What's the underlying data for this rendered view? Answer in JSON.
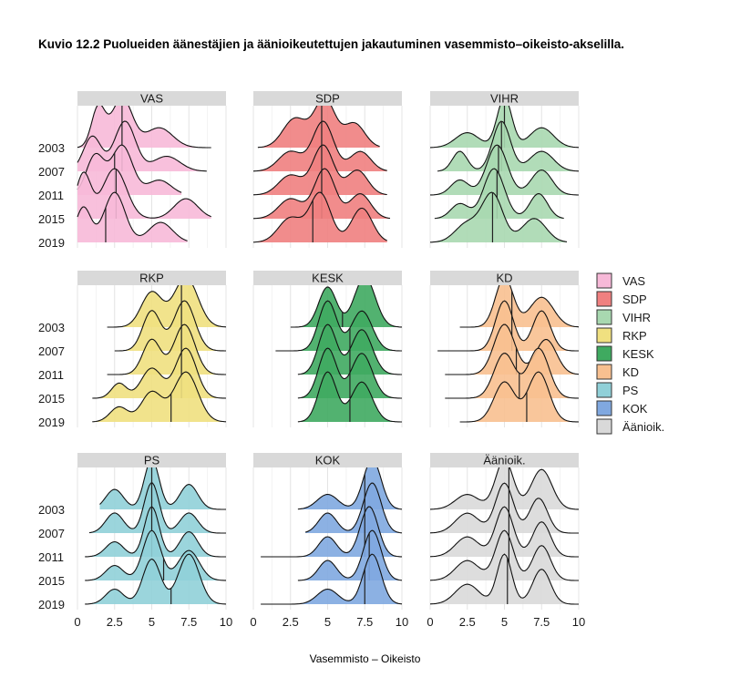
{
  "figure": {
    "label": "Kuvio 12.2",
    "title": "Puolueiden äänestäjien ja äänioikeutettujen jakautuminen vasemmisto–oikeisto-akselilla."
  },
  "chart_data": {
    "type": "ridgeline",
    "xlabel": "Vasemmisto – Oikeisto",
    "xlim": [
      0,
      10
    ],
    "xticks": [
      "0",
      "2.5",
      "5",
      "7.5",
      "10"
    ],
    "years": [
      "2003",
      "2007",
      "2011",
      "2015",
      "2019"
    ],
    "legend": {
      "placement": "right",
      "entries": [
        "VAS",
        "SDP",
        "VIHR",
        "RKP",
        "KESK",
        "KD",
        "PS",
        "KOK",
        "Äänioik."
      ]
    },
    "grid": true,
    "panels": [
      {
        "name": "VAS",
        "color": "#f7b9d8",
        "medians": [
          3.0,
          3.0,
          2.5,
          2.6,
          1.9
        ],
        "ridges": [
          {
            "range": [
              0,
              9.0
            ],
            "peaks": [
              [
                1.4,
                0.45,
                0.8
              ],
              [
                3.0,
                0.7,
                1.0
              ],
              [
                5.5,
                0.9,
                0.4
              ]
            ]
          },
          {
            "range": [
              0,
              8.7
            ],
            "peaks": [
              [
                1.0,
                0.6,
                0.7
              ],
              [
                3.2,
                0.7,
                1.0
              ],
              [
                6.0,
                0.9,
                0.3
              ]
            ]
          },
          {
            "range": [
              0,
              7.0
            ],
            "peaks": [
              [
                1.2,
                0.6,
                0.8
              ],
              [
                3.0,
                0.7,
                1.0
              ],
              [
                5.5,
                0.8,
                0.3
              ]
            ]
          },
          {
            "range": [
              0,
              9.0
            ],
            "peaks": [
              [
                0.4,
                0.5,
                0.9
              ],
              [
                2.5,
                0.8,
                1.0
              ],
              [
                7.3,
                0.8,
                0.4
              ]
            ]
          },
          {
            "range": [
              0,
              7.4
            ],
            "peaks": [
              [
                0.4,
                0.5,
                0.7
              ],
              [
                2.5,
                0.7,
                1.0
              ],
              [
                5.6,
                0.8,
                0.4
              ]
            ]
          }
        ]
      },
      {
        "name": "SDP",
        "color": "#f08080",
        "medians": [
          4.6,
          4.6,
          4.6,
          4.6,
          4.0
        ],
        "ridges": [
          {
            "range": [
              0.3,
              8.5
            ],
            "peaks": [
              [
                2.8,
                0.8,
                0.6
              ],
              [
                4.8,
                0.7,
                1.0
              ],
              [
                6.8,
                0.7,
                0.5
              ]
            ]
          },
          {
            "range": [
              0,
              9.0
            ],
            "peaks": [
              [
                2.5,
                0.8,
                0.4
              ],
              [
                4.7,
                0.7,
                1.0
              ],
              [
                7.2,
                0.7,
                0.4
              ]
            ]
          },
          {
            "range": [
              0,
              9.0
            ],
            "peaks": [
              [
                2.5,
                0.8,
                0.4
              ],
              [
                4.7,
                0.7,
                1.0
              ],
              [
                7.0,
                0.7,
                0.5
              ]
            ]
          },
          {
            "range": [
              0,
              9.2
            ],
            "peaks": [
              [
                2.5,
                0.8,
                0.4
              ],
              [
                4.8,
                0.7,
                1.0
              ],
              [
                7.2,
                0.7,
                0.5
              ]
            ]
          },
          {
            "range": [
              0,
              9.0
            ],
            "peaks": [
              [
                2.5,
                0.8,
                0.5
              ],
              [
                4.5,
                0.7,
                1.0
              ],
              [
                7.3,
                0.7,
                0.7
              ]
            ]
          }
        ]
      },
      {
        "name": "VIHR",
        "color": "#a8d8b0",
        "medians": [
          5.0,
          4.8,
          4.6,
          4.5,
          4.2
        ],
        "ridges": [
          {
            "range": [
              0,
              10
            ],
            "peaks": [
              [
                2.5,
                0.8,
                0.3
              ],
              [
                5.0,
                0.5,
                1.0
              ],
              [
                7.5,
                0.8,
                0.4
              ]
            ]
          },
          {
            "range": [
              0.5,
              10
            ],
            "peaks": [
              [
                2.0,
                0.5,
                0.4
              ],
              [
                4.8,
                0.6,
                1.0
              ],
              [
                7.5,
                0.8,
                0.4
              ]
            ]
          },
          {
            "range": [
              0,
              10
            ],
            "peaks": [
              [
                2.0,
                0.6,
                0.3
              ],
              [
                4.5,
                0.7,
                1.0
              ],
              [
                7.5,
                0.7,
                0.5
              ]
            ]
          },
          {
            "range": [
              0.3,
              9
            ],
            "peaks": [
              [
                2.0,
                0.6,
                0.3
              ],
              [
                4.3,
                0.7,
                1.0
              ],
              [
                7.3,
                0.6,
                0.5
              ]
            ]
          },
          {
            "range": [
              0,
              9.2
            ],
            "peaks": [
              [
                2.5,
                0.8,
                0.4
              ],
              [
                4.2,
                0.7,
                1.0
              ],
              [
                7.0,
                0.8,
                0.5
              ]
            ]
          }
        ]
      },
      {
        "name": "RKP",
        "color": "#f0e080",
        "medians": [
          7.0,
          7.0,
          7.0,
          7.0,
          6.3
        ],
        "ridges": [
          {
            "range": [
              2.0,
              10
            ],
            "peaks": [
              [
                5.0,
                0.7,
                0.7
              ],
              [
                7.3,
                0.8,
                1.0
              ]
            ]
          },
          {
            "range": [
              2.5,
              10
            ],
            "peaks": [
              [
                5.0,
                0.6,
                0.8
              ],
              [
                7.2,
                0.7,
                1.0
              ]
            ]
          },
          {
            "range": [
              2.0,
              10
            ],
            "peaks": [
              [
                5.0,
                0.6,
                0.7
              ],
              [
                7.2,
                0.7,
                1.0
              ]
            ]
          },
          {
            "range": [
              1.0,
              10
            ],
            "peaks": [
              [
                2.8,
                0.5,
                0.3
              ],
              [
                5.0,
                0.7,
                0.6
              ],
              [
                7.3,
                0.7,
                1.0
              ]
            ]
          },
          {
            "range": [
              1.0,
              10
            ],
            "peaks": [
              [
                2.8,
                0.6,
                0.3
              ],
              [
                5.0,
                0.7,
                0.6
              ],
              [
                7.3,
                0.8,
                1.0
              ]
            ]
          }
        ]
      },
      {
        "name": "KESK",
        "color": "#3faa60",
        "medians": [
          6.0,
          6.5,
          6.5,
          6.5,
          6.5
        ],
        "ridges": [
          {
            "range": [
              2.5,
              10
            ],
            "peaks": [
              [
                5.0,
                0.6,
                0.8
              ],
              [
                7.5,
                0.7,
                1.0
              ]
            ]
          },
          {
            "range": [
              1.5,
              10
            ],
            "peaks": [
              [
                5.0,
                0.6,
                1.0
              ],
              [
                7.3,
                0.7,
                0.8
              ]
            ]
          },
          {
            "range": [
              3.0,
              10
            ],
            "peaks": [
              [
                5.0,
                0.6,
                1.0
              ],
              [
                7.3,
                0.7,
                0.9
              ]
            ]
          },
          {
            "range": [
              3.0,
              10
            ],
            "peaks": [
              [
                5.0,
                0.6,
                1.0
              ],
              [
                7.3,
                0.7,
                0.9
              ]
            ]
          },
          {
            "range": [
              3.0,
              10
            ],
            "peaks": [
              [
                5.0,
                0.6,
                1.0
              ],
              [
                7.3,
                0.7,
                0.8
              ]
            ]
          }
        ]
      },
      {
        "name": "KD",
        "color": "#f8c090",
        "medians": [
          5.5,
          5.5,
          5.8,
          6.0,
          6.5
        ],
        "ridges": [
          {
            "range": [
              2.0,
              10
            ],
            "peaks": [
              [
                5.0,
                0.6,
                1.0
              ],
              [
                7.5,
                0.8,
                0.6
              ]
            ]
          },
          {
            "range": [
              0.5,
              10
            ],
            "peaks": [
              [
                5.0,
                0.6,
                1.0
              ],
              [
                7.5,
                0.6,
                0.8
              ]
            ]
          },
          {
            "range": [
              1.0,
              10
            ],
            "peaks": [
              [
                5.0,
                0.7,
                1.0
              ],
              [
                7.8,
                0.7,
                0.7
              ]
            ]
          },
          {
            "range": [
              1.0,
              10
            ],
            "peaks": [
              [
                5.0,
                0.7,
                0.9
              ],
              [
                7.3,
                0.7,
                1.0
              ]
            ]
          },
          {
            "range": [
              2.0,
              10
            ],
            "peaks": [
              [
                5.0,
                0.7,
                0.8
              ],
              [
                7.3,
                0.7,
                1.0
              ]
            ]
          }
        ]
      },
      {
        "name": "PS",
        "color": "#90d0d8",
        "medians": [
          5.0,
          5.0,
          5.0,
          5.8,
          6.3
        ],
        "ridges": [
          {
            "range": [
              1.5,
              10
            ],
            "peaks": [
              [
                2.5,
                0.6,
                0.4
              ],
              [
                5.0,
                0.5,
                1.0
              ],
              [
                7.5,
                0.6,
                0.5
              ]
            ]
          },
          {
            "range": [
              0.8,
              10
            ],
            "peaks": [
              [
                2.5,
                0.6,
                0.4
              ],
              [
                5.0,
                0.5,
                1.0
              ],
              [
                7.5,
                0.6,
                0.4
              ]
            ]
          },
          {
            "range": [
              0.5,
              10
            ],
            "peaks": [
              [
                2.5,
                0.6,
                0.3
              ],
              [
                5.0,
                0.5,
                1.0
              ],
              [
                7.5,
                0.6,
                0.5
              ]
            ]
          },
          {
            "range": [
              0.5,
              10
            ],
            "peaks": [
              [
                2.5,
                0.6,
                0.3
              ],
              [
                5.0,
                0.6,
                1.0
              ],
              [
                7.5,
                0.7,
                0.6
              ]
            ]
          },
          {
            "range": [
              0.5,
              10
            ],
            "peaks": [
              [
                2.5,
                0.6,
                0.3
              ],
              [
                5.0,
                0.6,
                0.9
              ],
              [
                7.5,
                0.7,
                1.0
              ]
            ]
          }
        ]
      },
      {
        "name": "KOK",
        "color": "#80a8e0",
        "medians": [
          7.5,
          7.5,
          7.5,
          7.8,
          7.5
        ],
        "ridges": [
          {
            "range": [
              3.0,
              10
            ],
            "peaks": [
              [
                5.0,
                0.7,
                0.3
              ],
              [
                8.0,
                0.6,
                1.0
              ]
            ]
          },
          {
            "range": [
              3.5,
              10
            ],
            "peaks": [
              [
                5.0,
                0.6,
                0.4
              ],
              [
                8.0,
                0.6,
                1.0
              ]
            ]
          },
          {
            "range": [
              0.5,
              10
            ],
            "peaks": [
              [
                5.0,
                0.6,
                0.4
              ],
              [
                7.8,
                0.6,
                1.0
              ]
            ]
          },
          {
            "range": [
              3.0,
              10
            ],
            "peaks": [
              [
                5.0,
                0.6,
                0.4
              ],
              [
                8.0,
                0.6,
                1.0
              ]
            ]
          },
          {
            "range": [
              0.5,
              10
            ],
            "peaks": [
              [
                5.0,
                0.7,
                0.3
              ],
              [
                8.0,
                0.6,
                1.0
              ]
            ]
          }
        ]
      },
      {
        "name": "Äänioik.",
        "color": "#d9d9d9",
        "medians": [
          5.3,
          5.3,
          5.3,
          5.3,
          5.2
        ],
        "ridges": [
          {
            "range": [
              0,
              10
            ],
            "peaks": [
              [
                2.5,
                0.8,
                0.3
              ],
              [
                5.0,
                0.6,
                1.0
              ],
              [
                7.5,
                0.7,
                0.8
              ]
            ]
          },
          {
            "range": [
              0,
              10
            ],
            "peaks": [
              [
                2.5,
                0.8,
                0.4
              ],
              [
                5.0,
                0.6,
                1.0
              ],
              [
                7.3,
                0.6,
                0.7
              ]
            ]
          },
          {
            "range": [
              0,
              10
            ],
            "peaks": [
              [
                2.5,
                0.8,
                0.4
              ],
              [
                5.0,
                0.6,
                1.0
              ],
              [
                7.5,
                0.6,
                0.7
              ]
            ]
          },
          {
            "range": [
              0,
              10
            ],
            "peaks": [
              [
                2.5,
                0.8,
                0.4
              ],
              [
                5.0,
                0.6,
                1.0
              ],
              [
                7.5,
                0.6,
                0.7
              ]
            ]
          },
          {
            "range": [
              0,
              10
            ],
            "peaks": [
              [
                2.5,
                0.8,
                0.4
              ],
              [
                5.0,
                0.5,
                1.0
              ],
              [
                7.5,
                0.6,
                0.7
              ]
            ]
          }
        ]
      }
    ]
  }
}
